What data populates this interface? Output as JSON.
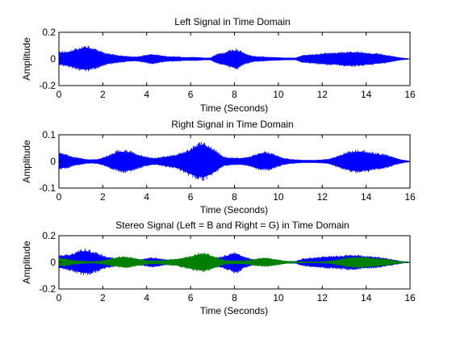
{
  "chart_data": [
    {
      "type": "line",
      "title": "Left Signal in Time Domain",
      "xlabel": "Time (Seconds)",
      "ylabel": "Amplitude",
      "xlim": [
        0,
        16
      ],
      "ylim": [
        -0.2,
        0.2
      ],
      "xticks": [
        0,
        2,
        4,
        6,
        8,
        10,
        12,
        14,
        16
      ],
      "xtick_labels": [
        "0",
        "2",
        "4",
        "6",
        "8",
        "10",
        "12",
        "14",
        "16"
      ],
      "yticks": [
        -0.2,
        0,
        0.2
      ],
      "ytick_labels": [
        "-0.2",
        "0",
        "0.2"
      ],
      "grid": false,
      "series": [
        {
          "color": "#0000ff",
          "envelope": {
            "x": [
              0,
              0.3,
              0.6,
              0.9,
              1.2,
              1.5,
              1.8,
              2.1,
              2.4,
              2.7,
              3.0,
              3.3,
              3.6,
              3.9,
              4.2,
              4.5,
              4.8,
              5.1,
              5.4,
              5.7,
              6.0,
              6.3,
              6.6,
              6.9,
              7.2,
              7.5,
              7.8,
              8.1,
              8.4,
              8.7,
              9.0,
              9.3,
              9.6,
              9.9,
              10.2,
              10.5,
              10.8,
              11.1,
              11.4,
              11.7,
              12.0,
              12.3,
              12.6,
              12.9,
              13.2,
              13.5,
              13.8,
              14.1,
              14.4,
              14.7,
              15.0,
              15.3,
              15.6,
              15.9,
              16.0
            ],
            "top": [
              0.06,
              0.06,
              0.07,
              0.09,
              0.11,
              0.09,
              0.07,
              0.05,
              0.04,
              0.03,
              0.025,
              0.02,
              0.02,
              0.03,
              0.04,
              0.035,
              0.025,
              0.02,
              0.02,
              0.015,
              0.015,
              0.015,
              0.01,
              0.01,
              0.04,
              0.05,
              0.07,
              0.08,
              0.05,
              0.03,
              0.02,
              0.02,
              0.015,
              0.015,
              0.01,
              0.01,
              0.01,
              0.03,
              0.035,
              0.04,
              0.045,
              0.05,
              0.05,
              0.055,
              0.06,
              0.06,
              0.055,
              0.05,
              0.045,
              0.04,
              0.03,
              0.02,
              0.01,
              0.005,
              0.0
            ],
            "bottom": [
              -0.05,
              -0.06,
              -0.07,
              -0.09,
              -0.1,
              -0.09,
              -0.07,
              -0.05,
              -0.04,
              -0.03,
              -0.025,
              -0.02,
              -0.02,
              -0.03,
              -0.04,
              -0.035,
              -0.025,
              -0.02,
              -0.02,
              -0.015,
              -0.015,
              -0.015,
              -0.01,
              -0.01,
              -0.04,
              -0.05,
              -0.07,
              -0.09,
              -0.05,
              -0.03,
              -0.02,
              -0.02,
              -0.015,
              -0.015,
              -0.01,
              -0.01,
              -0.01,
              -0.03,
              -0.035,
              -0.04,
              -0.045,
              -0.05,
              -0.05,
              -0.055,
              -0.06,
              -0.06,
              -0.055,
              -0.05,
              -0.045,
              -0.04,
              -0.03,
              -0.02,
              -0.01,
              -0.005,
              0.0
            ]
          }
        }
      ]
    },
    {
      "type": "line",
      "title": "Right Signal in Time Domain",
      "xlabel": "Time (Seconds)",
      "ylabel": "Amplitude",
      "xlim": [
        0,
        16
      ],
      "ylim": [
        -0.1,
        0.1
      ],
      "xticks": [
        0,
        2,
        4,
        6,
        8,
        10,
        12,
        14,
        16
      ],
      "xtick_labels": [
        "0",
        "2",
        "4",
        "6",
        "8",
        "10",
        "12",
        "14",
        "16"
      ],
      "yticks": [
        -0.1,
        0,
        0.1
      ],
      "ytick_labels": [
        "-0.1",
        "0",
        "0.1"
      ],
      "grid": false,
      "series": [
        {
          "color": "#0000ff",
          "envelope": {
            "x": [
              0,
              0.3,
              0.6,
              0.9,
              1.2,
              1.5,
              1.8,
              2.1,
              2.4,
              2.7,
              3.0,
              3.3,
              3.6,
              3.9,
              4.2,
              4.5,
              4.8,
              5.1,
              5.4,
              5.7,
              6.0,
              6.3,
              6.6,
              6.9,
              7.2,
              7.5,
              7.8,
              8.1,
              8.4,
              8.7,
              9.0,
              9.3,
              9.6,
              9.9,
              10.2,
              10.5,
              10.8,
              11.1,
              11.4,
              11.7,
              12.0,
              12.3,
              12.6,
              12.9,
              13.2,
              13.5,
              13.8,
              14.1,
              14.4,
              14.7,
              15.0,
              15.3,
              15.6,
              15.9,
              16.0
            ],
            "top": [
              0.04,
              0.03,
              0.02,
              0.015,
              0.01,
              0.008,
              0.01,
              0.02,
              0.03,
              0.045,
              0.045,
              0.04,
              0.03,
              0.02,
              0.015,
              0.015,
              0.02,
              0.025,
              0.03,
              0.04,
              0.05,
              0.07,
              0.08,
              0.06,
              0.04,
              0.02,
              0.015,
              0.015,
              0.015,
              0.02,
              0.03,
              0.04,
              0.035,
              0.025,
              0.015,
              0.01,
              0.008,
              0.006,
              0.006,
              0.006,
              0.008,
              0.01,
              0.02,
              0.03,
              0.04,
              0.045,
              0.045,
              0.04,
              0.035,
              0.03,
              0.025,
              0.015,
              0.008,
              0.004,
              0.0
            ],
            "bottom": [
              -0.03,
              -0.03,
              -0.02,
              -0.015,
              -0.01,
              -0.008,
              -0.01,
              -0.02,
              -0.03,
              -0.04,
              -0.045,
              -0.04,
              -0.03,
              -0.02,
              -0.015,
              -0.015,
              -0.02,
              -0.025,
              -0.03,
              -0.045,
              -0.06,
              -0.07,
              -0.075,
              -0.06,
              -0.04,
              -0.02,
              -0.015,
              -0.015,
              -0.015,
              -0.02,
              -0.03,
              -0.035,
              -0.035,
              -0.025,
              -0.015,
              -0.01,
              -0.008,
              -0.006,
              -0.006,
              -0.006,
              -0.008,
              -0.01,
              -0.02,
              -0.03,
              -0.04,
              -0.045,
              -0.045,
              -0.04,
              -0.035,
              -0.03,
              -0.025,
              -0.015,
              -0.008,
              -0.004,
              0.0
            ]
          }
        }
      ]
    },
    {
      "type": "line",
      "title": "Stereo Signal (Left = B and Right = G) in Time Domain",
      "xlabel": "Time (Seconds)",
      "ylabel": "Amplitude",
      "xlim": [
        0,
        16
      ],
      "ylim": [
        -0.2,
        0.2
      ],
      "xticks": [
        0,
        2,
        4,
        6,
        8,
        10,
        12,
        14,
        16
      ],
      "xtick_labels": [
        "0",
        "2",
        "4",
        "6",
        "8",
        "10",
        "12",
        "14",
        "16"
      ],
      "yticks": [
        -0.2,
        0,
        0.2
      ],
      "ytick_labels": [
        "-0.2",
        "0",
        "0.2"
      ],
      "grid": false,
      "series": [
        {
          "color": "#0000ff",
          "envelope": {
            "x": [
              0,
              0.3,
              0.6,
              0.9,
              1.2,
              1.5,
              1.8,
              2.1,
              2.4,
              2.7,
              3.0,
              3.3,
              3.6,
              3.9,
              4.2,
              4.5,
              4.8,
              5.1,
              5.4,
              5.7,
              6.0,
              6.3,
              6.6,
              6.9,
              7.2,
              7.5,
              7.8,
              8.1,
              8.4,
              8.7,
              9.0,
              9.3,
              9.6,
              9.9,
              10.2,
              10.5,
              10.8,
              11.1,
              11.4,
              11.7,
              12.0,
              12.3,
              12.6,
              12.9,
              13.2,
              13.5,
              13.8,
              14.1,
              14.4,
              14.7,
              15.0,
              15.3,
              15.6,
              15.9,
              16.0
            ],
            "top": [
              0.06,
              0.06,
              0.07,
              0.09,
              0.11,
              0.09,
              0.07,
              0.05,
              0.04,
              0.03,
              0.025,
              0.02,
              0.02,
              0.03,
              0.04,
              0.035,
              0.025,
              0.02,
              0.02,
              0.015,
              0.015,
              0.015,
              0.01,
              0.01,
              0.04,
              0.05,
              0.07,
              0.08,
              0.05,
              0.03,
              0.02,
              0.02,
              0.015,
              0.015,
              0.01,
              0.01,
              0.01,
              0.03,
              0.035,
              0.04,
              0.045,
              0.05,
              0.05,
              0.055,
              0.06,
              0.06,
              0.055,
              0.05,
              0.045,
              0.04,
              0.03,
              0.02,
              0.01,
              0.005,
              0.0
            ],
            "bottom": [
              -0.05,
              -0.06,
              -0.07,
              -0.09,
              -0.1,
              -0.09,
              -0.07,
              -0.05,
              -0.04,
              -0.03,
              -0.025,
              -0.02,
              -0.02,
              -0.03,
              -0.04,
              -0.035,
              -0.025,
              -0.02,
              -0.02,
              -0.015,
              -0.015,
              -0.015,
              -0.01,
              -0.01,
              -0.04,
              -0.05,
              -0.07,
              -0.09,
              -0.05,
              -0.03,
              -0.02,
              -0.02,
              -0.015,
              -0.015,
              -0.01,
              -0.01,
              -0.01,
              -0.03,
              -0.035,
              -0.04,
              -0.045,
              -0.05,
              -0.05,
              -0.055,
              -0.06,
              -0.06,
              -0.055,
              -0.05,
              -0.045,
              -0.04,
              -0.03,
              -0.02,
              -0.01,
              -0.005,
              0.0
            ]
          }
        },
        {
          "color": "#008000",
          "envelope": {
            "x": [
              0,
              0.3,
              0.6,
              0.9,
              1.2,
              1.5,
              1.8,
              2.1,
              2.4,
              2.7,
              3.0,
              3.3,
              3.6,
              3.9,
              4.2,
              4.5,
              4.8,
              5.1,
              5.4,
              5.7,
              6.0,
              6.3,
              6.6,
              6.9,
              7.2,
              7.5,
              7.8,
              8.1,
              8.4,
              8.7,
              9.0,
              9.3,
              9.6,
              9.9,
              10.2,
              10.5,
              10.8,
              11.1,
              11.4,
              11.7,
              12.0,
              12.3,
              12.6,
              12.9,
              13.2,
              13.5,
              13.8,
              14.1,
              14.4,
              14.7,
              15.0,
              15.3,
              15.6,
              15.9,
              16.0
            ],
            "top": [
              0.04,
              0.03,
              0.02,
              0.015,
              0.01,
              0.008,
              0.01,
              0.02,
              0.03,
              0.045,
              0.045,
              0.04,
              0.03,
              0.02,
              0.015,
              0.015,
              0.02,
              0.025,
              0.03,
              0.04,
              0.05,
              0.07,
              0.08,
              0.06,
              0.04,
              0.02,
              0.015,
              0.015,
              0.015,
              0.02,
              0.03,
              0.04,
              0.035,
              0.025,
              0.015,
              0.01,
              0.008,
              0.006,
              0.006,
              0.006,
              0.008,
              0.01,
              0.02,
              0.03,
              0.04,
              0.045,
              0.045,
              0.04,
              0.035,
              0.03,
              0.025,
              0.015,
              0.008,
              0.004,
              0.0
            ],
            "bottom": [
              -0.03,
              -0.03,
              -0.02,
              -0.015,
              -0.01,
              -0.008,
              -0.01,
              -0.02,
              -0.03,
              -0.04,
              -0.045,
              -0.04,
              -0.03,
              -0.02,
              -0.015,
              -0.015,
              -0.02,
              -0.025,
              -0.03,
              -0.045,
              -0.06,
              -0.07,
              -0.075,
              -0.06,
              -0.04,
              -0.02,
              -0.015,
              -0.015,
              -0.015,
              -0.02,
              -0.03,
              -0.035,
              -0.035,
              -0.025,
              -0.015,
              -0.01,
              -0.008,
              -0.006,
              -0.006,
              -0.006,
              -0.008,
              -0.01,
              -0.02,
              -0.03,
              -0.04,
              -0.045,
              -0.045,
              -0.04,
              -0.035,
              -0.03,
              -0.025,
              -0.015,
              -0.008,
              -0.004,
              0.0
            ]
          }
        }
      ]
    }
  ]
}
